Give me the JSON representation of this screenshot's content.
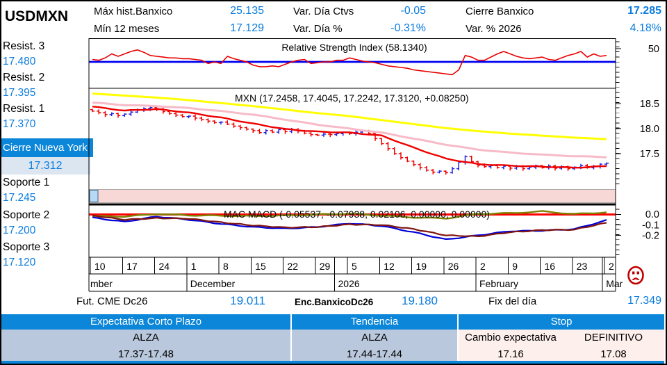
{
  "header": {
    "symbol": "USDMXN",
    "stats": [
      {
        "label": "Máx hist.Banxico",
        "value": "25.135"
      },
      {
        "label": "Mín 12 meses",
        "value": "17.129"
      },
      {
        "label": "Var. Día Ctvs",
        "value": "-0.05"
      },
      {
        "label": "Var. Día %",
        "value": "-0.31%"
      },
      {
        "label": "Cierre Banxico",
        "value": "17.285"
      },
      {
        "label": "Var. % 2026",
        "value": "4.18%"
      }
    ]
  },
  "sidebar": {
    "resistances": [
      {
        "label": "Resist. 3",
        "value": "17.480"
      },
      {
        "label": "Resist. 2",
        "value": "17.395"
      },
      {
        "label": "Resist. 1",
        "value": "17.370"
      }
    ],
    "close_ny": {
      "label": "Cierre Nueva York",
      "value": "17.312"
    },
    "supports": [
      {
        "label": "Soporte 1",
        "value": "17.245"
      },
      {
        "label": "Soporte 2",
        "value": "17.200"
      },
      {
        "label": "Soporte 3",
        "value": "17.120"
      }
    ]
  },
  "footer": {
    "fut_cme": {
      "label": "Fut. CME Dc26",
      "value": "19.011"
    },
    "enc": {
      "label": "Enc.BanxicoDc26",
      "value": "19.180"
    },
    "fix": {
      "label": "Fix del día",
      "value": "17.349"
    }
  },
  "summary_table": {
    "columns": [
      {
        "header": "Expectativa Corto Plazo",
        "row1": "ALZA",
        "row2": "17.37-17.48"
      },
      {
        "header": "Tendencia",
        "row1": "ALZA",
        "row2": "17.44-17.44"
      },
      {
        "header": "Stop",
        "sub1": "Cambio expectativa",
        "sub2": "DEFINITIVO",
        "val1": "17.16",
        "val2": "17.08"
      }
    ]
  },
  "colors": {
    "accent_blue_text": "#0a7ce0",
    "header_cell_blue": "#0b86d8",
    "table_body_blue": "#b9c8dc",
    "table_body_pink": "#fdf0ec",
    "band_pink": "#f8d7d7",
    "band_thumb_blue": "#b7d9f5",
    "sad_icon_red": "#c00000"
  },
  "chart_data": {
    "x_axis": {
      "week_labels": [
        "10",
        "17",
        "24",
        "1",
        "8",
        "15",
        "22",
        "29",
        "5",
        "12",
        "19",
        "26",
        "2",
        "9",
        "16",
        "23",
        "2"
      ],
      "months": [
        {
          "label": "mber",
          "du": 0
        },
        {
          "label": "December",
          "du": 15
        },
        {
          "label": "2026",
          "du": 38
        },
        {
          "label": "February",
          "du": 60
        },
        {
          "label": "Mar",
          "du": 79.7
        }
      ]
    },
    "panels": [
      {
        "id": "rsi",
        "type": "line",
        "title": "Relative Strength Index (58.1340)",
        "centerline": 50,
        "centerline_color": "#0000f2",
        "axis_labels": [
          "50"
        ],
        "series": [
          {
            "name": "RSI",
            "color": "#e80000",
            "values": [
              53,
              52,
              55,
              60,
              57,
              60,
              63,
              65,
              62,
              58,
              57,
              56,
              55,
              55,
              54,
              54,
              53,
              52,
              48,
              50,
              48,
              57,
              54,
              52,
              50,
              46,
              44,
              44,
              45,
              44,
              47,
              50,
              52,
              53,
              48,
              49,
              50,
              50,
              52,
              52,
              55,
              53,
              51,
              50,
              49,
              47,
              45,
              44,
              43,
              42,
              40,
              39,
              38,
              37,
              36,
              35,
              34,
              40,
              58,
              56,
              52,
              52,
              56,
              60,
              63,
              60,
              57,
              55,
              54,
              55,
              56,
              53,
              52,
              55,
              58,
              60,
              63,
              56,
              60,
              57,
              58
            ]
          }
        ]
      },
      {
        "id": "price",
        "type": "ohlc_bars",
        "title": "MXN (17.2458, 17.4045, 17.2242, 17.3120, +0.08250)",
        "last_bar": {
          "open": 17.2458,
          "high": 17.4045,
          "low": 17.2242,
          "close": 17.312,
          "change": 0.0825
        },
        "axis_labels": [
          "18.5",
          "18.0",
          "17.5"
        ],
        "open_first": 18.38,
        "up_color": "#2222dd",
        "down_color": "#ee0000",
        "closes": [
          18.35,
          18.32,
          18.28,
          18.3,
          18.26,
          18.29,
          18.33,
          18.37,
          18.4,
          18.42,
          18.38,
          18.34,
          18.3,
          18.27,
          18.24,
          18.25,
          18.21,
          18.18,
          18.15,
          18.12,
          18.13,
          18.09,
          18.05,
          18.02,
          17.99,
          17.96,
          17.92,
          17.96,
          17.93,
          17.98,
          17.94,
          17.98,
          17.95,
          17.91,
          17.88,
          17.87,
          17.89,
          17.88,
          17.9,
          17.92,
          17.9,
          17.93,
          17.95,
          17.9,
          17.8,
          17.7,
          17.6,
          17.5,
          17.42,
          17.35,
          17.28,
          17.22,
          17.17,
          17.13,
          17.15,
          17.12,
          17.2,
          17.33,
          17.44,
          17.34,
          17.27,
          17.24,
          17.26,
          17.22,
          17.25,
          17.21,
          17.24,
          17.2,
          17.23,
          17.26,
          17.22,
          17.25,
          17.21,
          17.24,
          17.2,
          17.23,
          17.26,
          17.22,
          17.25,
          17.29,
          17.31
        ],
        "ma_lines": [
          {
            "name": "MA long",
            "color": "#ffff00",
            "width": 3,
            "weekly": [
              18.7,
              18.66,
              18.62,
              18.57,
              18.51,
              18.45,
              18.38,
              18.31,
              18.25,
              18.17,
              18.09,
              18.01,
              17.95,
              17.9,
              17.86,
              17.82,
              17.79
            ]
          },
          {
            "name": "MA mid",
            "color": "#f7bac7",
            "width": 3,
            "weekly": [
              18.52,
              18.47,
              18.45,
              18.41,
              18.35,
              18.28,
              18.18,
              18.08,
              18.0,
              17.92,
              17.8,
              17.68,
              17.58,
              17.52,
              17.48,
              17.45,
              17.43
            ]
          },
          {
            "name": "MA short",
            "color": "#ee0000",
            "width": 2.4,
            "weekly": [
              18.44,
              18.36,
              18.39,
              18.32,
              18.22,
              18.1,
              17.99,
              17.94,
              17.92,
              17.86,
              17.62,
              17.4,
              17.29,
              17.26,
              17.24,
              17.22,
              17.25
            ]
          }
        ]
      },
      {
        "id": "macd",
        "type": "line",
        "title": "MAC MACD (-0.05537, -0.07938, 0.02106, 0.00000, 0.00000)",
        "zero_line_color": "#ff0000",
        "axis_labels": [
          "0.0",
          "-0.1",
          "-0.2"
        ],
        "series": [
          {
            "name": "Histogram",
            "color": "#7f7f00",
            "width": 2.4,
            "weekly": [
              -0.015,
              -0.02,
              0.005,
              -0.008,
              -0.012,
              -0.015,
              -0.01,
              0.0,
              0.008,
              -0.01,
              -0.028,
              -0.038,
              0.006,
              0.012,
              0.03,
              0.004,
              0.021
            ]
          },
          {
            "name": "MACD",
            "color": "#0000d8",
            "width": 2.2,
            "weekly": [
              -0.03,
              -0.07,
              -0.02,
              -0.05,
              -0.09,
              -0.12,
              -0.135,
              -0.12,
              -0.085,
              -0.11,
              -0.17,
              -0.24,
              -0.2,
              -0.16,
              -0.155,
              -0.14,
              -0.055
            ]
          },
          {
            "name": "Signal",
            "color": "#7f1410",
            "width": 2.2,
            "weekly": [
              -0.01,
              -0.05,
              -0.035,
              -0.04,
              -0.075,
              -0.105,
              -0.125,
              -0.12,
              -0.095,
              -0.1,
              -0.14,
              -0.2,
              -0.21,
              -0.17,
              -0.15,
              -0.145,
              -0.079
            ]
          }
        ]
      }
    ]
  }
}
